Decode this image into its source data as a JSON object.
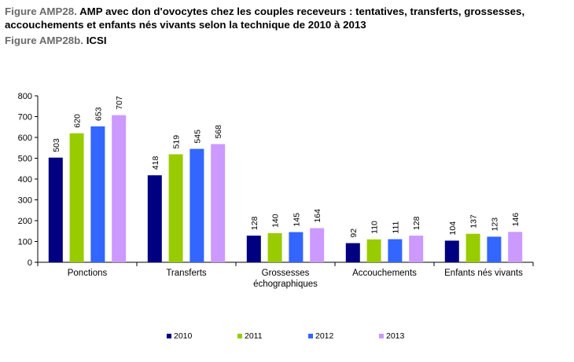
{
  "figure": {
    "title_label": "Figure AMP28.",
    "title_text": "AMP avec don d'ovocytes chez les couples receveurs : tentatives, transferts, grossesses, accouchements et enfants nés vivants selon la technique de 2010 à 2013",
    "subtitle_label": "Figure AMP28b.",
    "subtitle_text": "ICSI"
  },
  "chart_data": {
    "type": "bar",
    "title": "",
    "xlabel": "",
    "ylabel": "",
    "ylim": [
      0,
      800
    ],
    "yticks": [
      0,
      100,
      200,
      300,
      400,
      500,
      600,
      700,
      800
    ],
    "grid": false,
    "legend_position": "bottom",
    "categories": [
      [
        "Ponctions"
      ],
      [
        "Transferts"
      ],
      [
        "Grossesses",
        "échographiques"
      ],
      [
        "Accouchements"
      ],
      [
        "Enfants nés vivants"
      ]
    ],
    "series": [
      {
        "name": "2010",
        "color": "#000080",
        "values": [
          503,
          418,
          128,
          92,
          104
        ]
      },
      {
        "name": "2011",
        "color": "#99CC00",
        "values": [
          620,
          519,
          140,
          110,
          137
        ]
      },
      {
        "name": "2012",
        "color": "#3366FF",
        "values": [
          653,
          545,
          145,
          111,
          123
        ]
      },
      {
        "name": "2013",
        "color": "#CC99FF",
        "values": [
          707,
          568,
          164,
          128,
          146
        ]
      }
    ]
  }
}
